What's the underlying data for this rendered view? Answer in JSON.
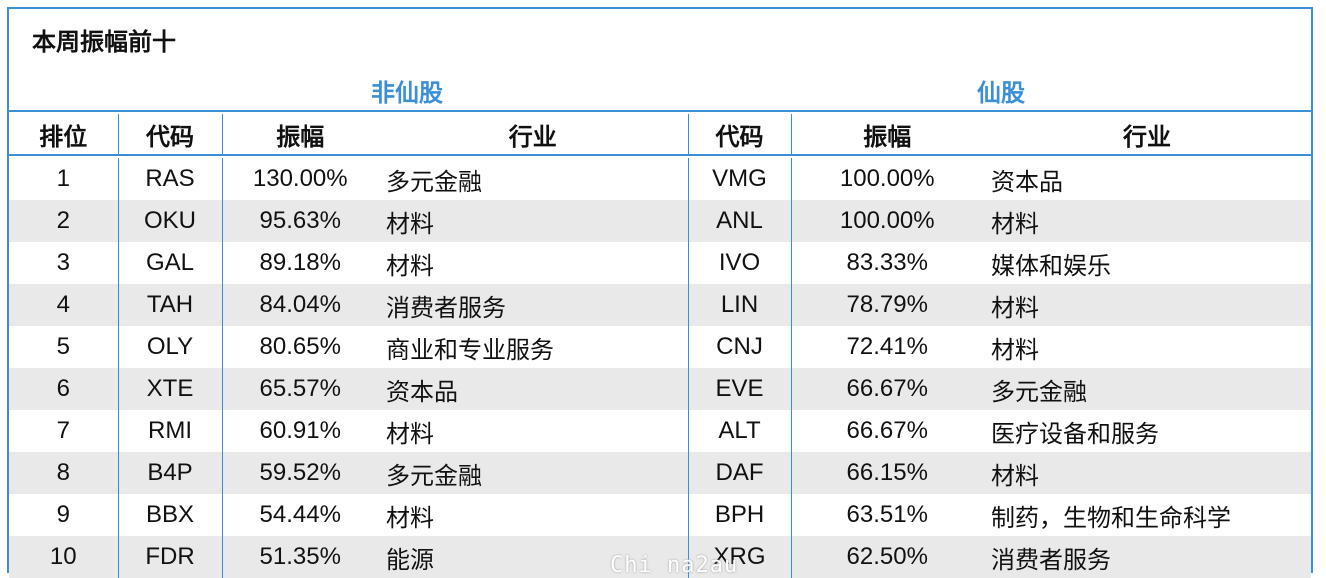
{
  "title": "本周振幅前十",
  "groups": {
    "left": "非仙股",
    "right": "仙股"
  },
  "headers": {
    "rank": "排位",
    "code_left": "代码",
    "amp_left": "振幅",
    "industry_left": "行业",
    "code_right": "代码",
    "amp_right": "振幅",
    "industry_right": "行业"
  },
  "rows": [
    {
      "rank": "1",
      "code_l": "RAS",
      "amp_l": "130.00%",
      "ind_l": "多元金融",
      "code_r": "VMG",
      "amp_r": "100.00%",
      "ind_r": "资本品"
    },
    {
      "rank": "2",
      "code_l": "OKU",
      "amp_l": "95.63%",
      "ind_l": "材料",
      "code_r": "ANL",
      "amp_r": "100.00%",
      "ind_r": "材料"
    },
    {
      "rank": "3",
      "code_l": "GAL",
      "amp_l": "89.18%",
      "ind_l": "材料",
      "code_r": "IVO",
      "amp_r": "83.33%",
      "ind_r": "媒体和娱乐"
    },
    {
      "rank": "4",
      "code_l": "TAH",
      "amp_l": "84.04%",
      "ind_l": "消费者服务",
      "code_r": "LIN",
      "amp_r": "78.79%",
      "ind_r": "材料"
    },
    {
      "rank": "5",
      "code_l": "OLY",
      "amp_l": "80.65%",
      "ind_l": "商业和专业服务",
      "code_r": "CNJ",
      "amp_r": "72.41%",
      "ind_r": "材料"
    },
    {
      "rank": "6",
      "code_l": "XTE",
      "amp_l": "65.57%",
      "ind_l": "资本品",
      "code_r": "EVE",
      "amp_r": "66.67%",
      "ind_r": "多元金融"
    },
    {
      "rank": "7",
      "code_l": "RMI",
      "amp_l": "60.91%",
      "ind_l": "材料",
      "code_r": "ALT",
      "amp_r": "66.67%",
      "ind_r": "医疗设备和服务"
    },
    {
      "rank": "8",
      "code_l": "B4P",
      "amp_l": "59.52%",
      "ind_l": "多元金融",
      "code_r": "DAF",
      "amp_r": "66.15%",
      "ind_r": "材料"
    },
    {
      "rank": "9",
      "code_l": "BBX",
      "amp_l": "54.44%",
      "ind_l": "材料",
      "code_r": "BPH",
      "amp_r": "63.51%",
      "ind_r": "制药，生物和生命科学"
    },
    {
      "rank": "10",
      "code_l": "FDR",
      "amp_l": "51.35%",
      "ind_l": "能源",
      "code_r": "XRG",
      "amp_r": "62.50%",
      "ind_r": "消费者服务"
    }
  ],
  "watermark": "Chi na2au",
  "colors": {
    "accent": "#3b8fd6",
    "alt_row": "#e9e9e9"
  }
}
